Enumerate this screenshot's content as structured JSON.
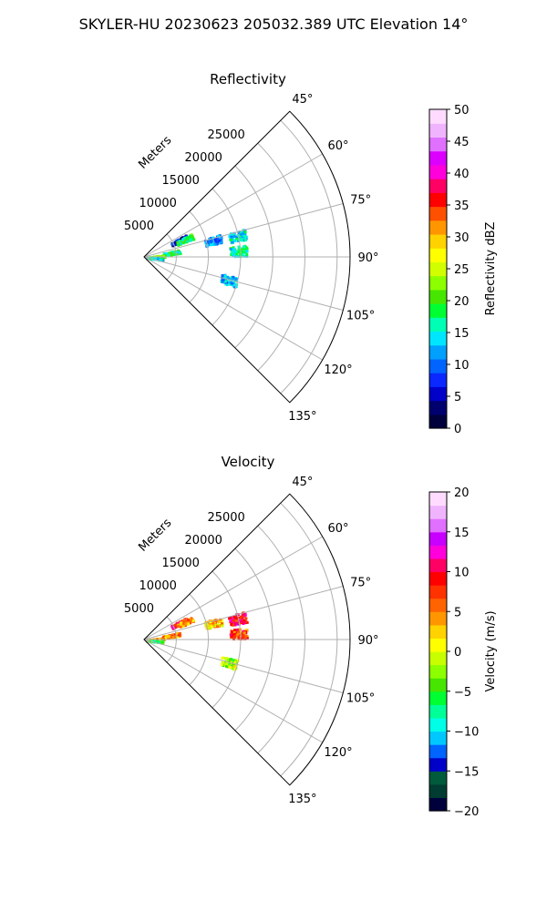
{
  "figure_title": "SKYLER-HU  20230623  205032.389 UTC Elevation 14°",
  "chart_data": [
    {
      "type": "polar-sector",
      "title": "Reflectivity",
      "range_label": "Meters",
      "range_ticks": [
        5000,
        10000,
        15000,
        20000,
        25000
      ],
      "range_max": 32000,
      "azimuth_range_deg": [
        45,
        135
      ],
      "azimuth_ticks": [
        "45°",
        "60°",
        "75°",
        "90°",
        "105°",
        "120°",
        "135°"
      ],
      "colorbar": {
        "label": "Reflectivity dBZ",
        "min": 0,
        "max": 50,
        "ticks": [
          "0",
          "5",
          "10",
          "15",
          "20",
          "25",
          "30",
          "35",
          "40",
          "45",
          "50"
        ],
        "colors": [
          "#00003c",
          "#00006e",
          "#0000c8",
          "#0a28ff",
          "#0064ff",
          "#00a0ff",
          "#00e6ff",
          "#00ffb4",
          "#00ff32",
          "#46e600",
          "#8cff00",
          "#d2ff00",
          "#ffff00",
          "#ffd200",
          "#ff9600",
          "#ff5000",
          "#ff0000",
          "#ff0064",
          "#ff00dc",
          "#dc00ff",
          "#e070ff",
          "#f0b4ff",
          "#ffdcff"
        ]
      },
      "echoes": [
        {
          "az_deg": 64,
          "range_m": 6000,
          "value": 5
        },
        {
          "az_deg": 66,
          "range_m": 6800,
          "value": 18
        },
        {
          "az_deg": 76,
          "range_m": 11000,
          "value": 11
        },
        {
          "az_deg": 77,
          "range_m": 14800,
          "value": 14
        },
        {
          "az_deg": 86,
          "range_m": 14600,
          "value": 17
        },
        {
          "az_deg": 105,
          "range_m": 13500,
          "value": 13
        },
        {
          "az_deg": 80,
          "range_m": 4200,
          "value": 18
        },
        {
          "az_deg": 85,
          "range_m": 1800,
          "value": 22
        },
        {
          "az_deg": 95,
          "range_m": 1500,
          "value": 15
        }
      ]
    },
    {
      "type": "polar-sector",
      "title": "Velocity",
      "range_label": "Meters",
      "range_ticks": [
        5000,
        10000,
        15000,
        20000,
        25000
      ],
      "range_max": 32000,
      "azimuth_range_deg": [
        45,
        135
      ],
      "azimuth_ticks": [
        "45°",
        "60°",
        "75°",
        "90°",
        "105°",
        "120°",
        "135°"
      ],
      "colorbar": {
        "label": "Velocity (m/s)",
        "min": -20,
        "max": 20,
        "ticks": [
          "−20",
          "−15",
          "−10",
          "−5",
          "0",
          "5",
          "10",
          "15",
          "20"
        ],
        "colors": [
          "#00003c",
          "#003c32",
          "#005a3c",
          "#0000c8",
          "#0064ff",
          "#00c8ff",
          "#00ffe6",
          "#00ff96",
          "#00ff32",
          "#46e600",
          "#8cff00",
          "#c8ff00",
          "#ffff00",
          "#ffd200",
          "#ff9600",
          "#ff6400",
          "#ff3200",
          "#ff0000",
          "#ff0064",
          "#ff00dc",
          "#c800ff",
          "#e070ff",
          "#f0b4ff",
          "#ffdcff"
        ]
      },
      "echoes": [
        {
          "az_deg": 64,
          "range_m": 6000,
          "value": 9
        },
        {
          "az_deg": 66,
          "range_m": 6800,
          "value": 4
        },
        {
          "az_deg": 76,
          "range_m": 11000,
          "value": 3
        },
        {
          "az_deg": 77,
          "range_m": 14800,
          "value": 10
        },
        {
          "az_deg": 86,
          "range_m": 14600,
          "value": 7
        },
        {
          "az_deg": 105,
          "range_m": 13500,
          "value": -2
        },
        {
          "az_deg": 80,
          "range_m": 4200,
          "value": 5
        },
        {
          "az_deg": 85,
          "range_m": 1800,
          "value": 4
        },
        {
          "az_deg": 95,
          "range_m": 1500,
          "value": -5
        }
      ]
    }
  ]
}
